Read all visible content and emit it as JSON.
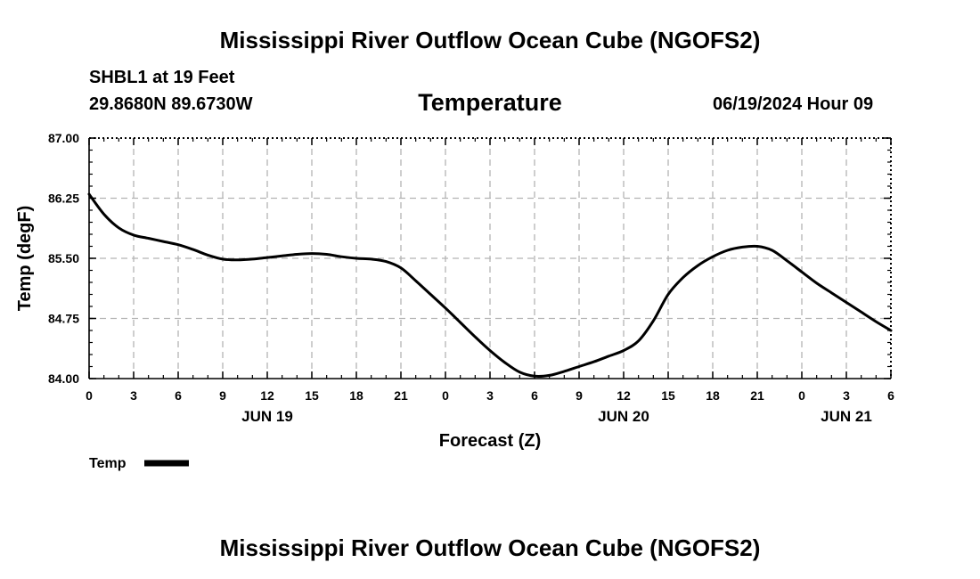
{
  "header": {
    "title": "Mississippi River Outflow Ocean Cube (NGOFS2)",
    "station": "SHBL1 at 19 Feet",
    "coords": "29.8680N  89.6730W",
    "datetime": "06/19/2024 Hour 09"
  },
  "footer": {
    "title": "Mississippi River Outflow Ocean Cube (NGOFS2)"
  },
  "chart_data": {
    "type": "line",
    "title": "Temperature",
    "xlabel": "Forecast (Z)",
    "ylabel": "Temp (degF)",
    "xlim": [
      0,
      54
    ],
    "ylim": [
      84.0,
      87.0
    ],
    "grid": true,
    "legend": "bottom-left",
    "y_ticks": [
      "84.00",
      "84.75",
      "85.50",
      "86.25",
      "87.00"
    ],
    "x_tick_labels": [
      "0",
      "3",
      "6",
      "9",
      "12",
      "15",
      "18",
      "21",
      "0",
      "3",
      "6",
      "9",
      "12",
      "15",
      "18",
      "21",
      "0",
      "3",
      "6"
    ],
    "date_labels": [
      {
        "label": "JUN 19",
        "hour": 12
      },
      {
        "label": "JUN 20",
        "hour": 36
      },
      {
        "label": "JUN 21",
        "hour": 51
      }
    ],
    "series": [
      {
        "name": "Temp",
        "color": "#000000",
        "x": [
          0,
          1,
          2,
          3,
          4,
          5,
          6,
          7,
          8,
          9,
          10,
          11,
          12,
          13,
          14,
          15,
          16,
          17,
          18,
          19,
          20,
          21,
          22,
          23,
          24,
          25,
          26,
          27,
          28,
          29,
          30,
          31,
          32,
          33,
          34,
          35,
          36,
          37,
          38,
          39,
          40,
          41,
          42,
          43,
          44,
          45,
          46,
          47,
          48,
          49,
          50,
          51,
          52,
          53,
          54
        ],
        "values": [
          86.3,
          86.05,
          85.88,
          85.79,
          85.75,
          85.71,
          85.67,
          85.61,
          85.54,
          85.49,
          85.48,
          85.49,
          85.51,
          85.53,
          85.55,
          85.56,
          85.55,
          85.52,
          85.5,
          85.49,
          85.46,
          85.38,
          85.22,
          85.05,
          84.88,
          84.7,
          84.52,
          84.35,
          84.2,
          84.08,
          84.03,
          84.04,
          84.09,
          84.15,
          84.21,
          84.28,
          84.35,
          84.47,
          84.72,
          85.05,
          85.26,
          85.41,
          85.52,
          85.6,
          85.64,
          85.65,
          85.6,
          85.47,
          85.33,
          85.19,
          85.07,
          84.95,
          84.83,
          84.71,
          84.6
        ]
      }
    ]
  }
}
